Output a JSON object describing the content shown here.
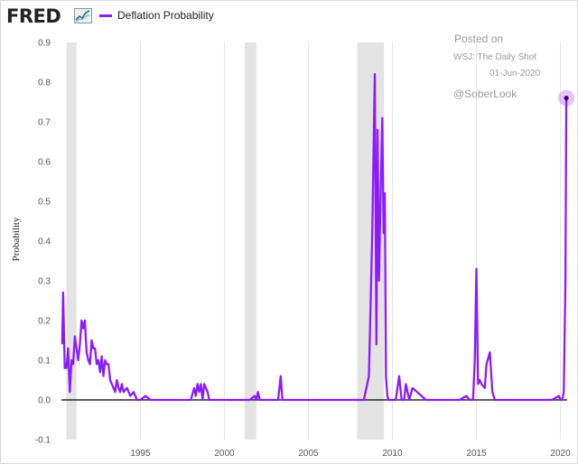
{
  "header": {
    "logo_text": "FRED",
    "legend_label": "Deflation Probability"
  },
  "annotations": {
    "posted_on": "Posted on",
    "source": "WSJ: The Daily Shot",
    "date": "01-Jun-2020",
    "handle": "@SoberLook"
  },
  "colors": {
    "series": "#8c1aff",
    "recession": "#e3e3e3"
  },
  "chart_data": {
    "type": "line",
    "title": "",
    "xlabel": "",
    "ylabel": "Probability",
    "xlim": [
      1990.3,
      2020.4
    ],
    "ylim": [
      -0.1,
      0.9
    ],
    "y_ticks": [
      0.9,
      0.8,
      0.7,
      0.6,
      0.5,
      0.4,
      0.3,
      0.2,
      0.1,
      0.0,
      -0.1
    ],
    "y_tick_labels": [
      "0.9",
      "0.8",
      "0.7",
      "0.6",
      "0.5",
      "0.4",
      "0.3",
      "0.2",
      "0.1",
      "0.0",
      "-0.1"
    ],
    "x_ticks": [
      1995,
      2000,
      2005,
      2010,
      2015,
      2020
    ],
    "x_tick_labels": [
      "1995",
      "2000",
      "2005",
      "2010",
      "2015",
      "2020"
    ],
    "grid": "vertical",
    "recessions": [
      [
        1990.6,
        1991.2
      ],
      [
        2001.2,
        2001.9
      ],
      [
        2007.9,
        2009.5
      ]
    ],
    "series": [
      {
        "name": "Deflation Probability",
        "x": [
          1990.35,
          1990.4,
          1990.5,
          1990.55,
          1990.6,
          1990.7,
          1990.8,
          1990.9,
          1991.0,
          1991.1,
          1991.2,
          1991.3,
          1991.4,
          1991.5,
          1991.6,
          1991.7,
          1991.8,
          1991.9,
          1992.0,
          1992.1,
          1992.2,
          1992.3,
          1992.4,
          1992.5,
          1992.6,
          1992.7,
          1992.8,
          1992.9,
          1993.0,
          1993.1,
          1993.2,
          1993.3,
          1993.4,
          1993.5,
          1993.6,
          1993.7,
          1993.8,
          1993.9,
          1994.0,
          1994.2,
          1994.4,
          1994.6,
          1994.8,
          1995.0,
          1995.3,
          1995.6,
          1996.0,
          1996.5,
          1997.0,
          1997.5,
          1998.0,
          1998.2,
          1998.3,
          1998.4,
          1998.5,
          1998.6,
          1998.7,
          1998.8,
          1998.9,
          1999.0,
          1999.1,
          1999.2,
          1999.4,
          2000.0,
          2001.0,
          2001.5,
          2001.8,
          2001.9,
          2002.0,
          2002.1,
          2002.5,
          2003.0,
          2003.2,
          2003.35,
          2003.45,
          2003.6,
          2004.0,
          2005.0,
          2006.0,
          2007.0,
          2007.8,
          2008.0,
          2008.3,
          2008.6,
          2008.8,
          2008.95,
          2009.05,
          2009.12,
          2009.2,
          2009.3,
          2009.4,
          2009.48,
          2009.55,
          2009.62,
          2009.7,
          2009.78,
          2009.88,
          2009.95,
          2010.05,
          2010.2,
          2010.4,
          2010.55,
          2010.7,
          2010.8,
          2011.0,
          2011.2,
          2012.0,
          2013.0,
          2013.5,
          2014.0,
          2014.4,
          2014.6,
          2014.8,
          2014.9,
          2015.0,
          2015.1,
          2015.2,
          2015.3,
          2015.5,
          2015.6,
          2015.8,
          2015.95,
          2016.1,
          2016.3,
          2016.5,
          2017.0,
          2018.0,
          2019.0,
          2019.5,
          2019.9,
          2020.0,
          2020.1,
          2020.2,
          2020.3,
          2020.35
        ],
        "y": [
          0.14,
          0.27,
          0.08,
          0.09,
          0.08,
          0.13,
          0.02,
          0.1,
          0.09,
          0.16,
          0.13,
          0.1,
          0.14,
          0.2,
          0.18,
          0.2,
          0.12,
          0.1,
          0.09,
          0.15,
          0.13,
          0.13,
          0.09,
          0.1,
          0.07,
          0.11,
          0.06,
          0.1,
          0.09,
          0.09,
          0.05,
          0.04,
          0.03,
          0.02,
          0.05,
          0.03,
          0.02,
          0.04,
          0.02,
          0.03,
          0.01,
          0.02,
          0.0,
          0.0,
          0.01,
          0.0,
          0.0,
          0.0,
          0.0,
          0.0,
          0.0,
          0.03,
          0.01,
          0.04,
          0.02,
          0.04,
          0.0,
          0.04,
          0.03,
          0.02,
          0.0,
          0.0,
          0.0,
          0.0,
          0.0,
          0.0,
          0.01,
          0.0,
          0.02,
          0.0,
          0.0,
          0.0,
          0.0,
          0.06,
          0.0,
          0.0,
          0.0,
          0.0,
          0.0,
          0.0,
          0.0,
          0.0,
          0.0,
          0.06,
          0.42,
          0.82,
          0.14,
          0.68,
          0.3,
          0.52,
          0.71,
          0.42,
          0.52,
          0.06,
          0.01,
          0.0,
          0.0,
          0.0,
          0.0,
          0.0,
          0.06,
          0.0,
          0.0,
          0.04,
          0.0,
          0.03,
          0.0,
          0.0,
          0.0,
          0.0,
          0.01,
          0.0,
          0.0,
          0.1,
          0.33,
          0.04,
          0.05,
          0.04,
          0.03,
          0.09,
          0.12,
          0.02,
          0.0,
          0.0,
          0.0,
          0.0,
          0.0,
          0.0,
          0.0,
          0.01,
          0.0,
          0.0,
          0.02,
          0.3,
          0.76
        ]
      }
    ],
    "highlight_last_point": true
  }
}
